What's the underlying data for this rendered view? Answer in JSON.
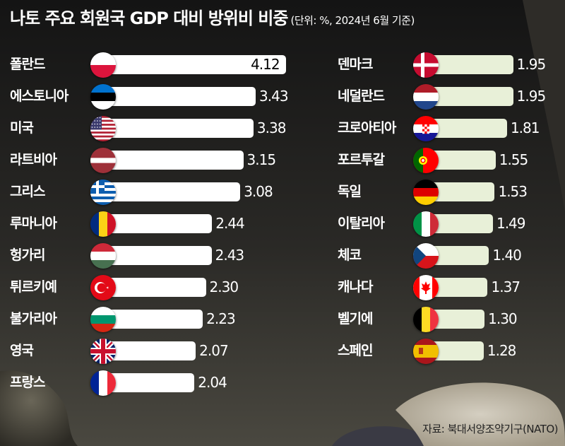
{
  "title": "나토 주요 회원국 GDP 대비 방위비 비중",
  "subtitle": "(단위: %, 2024년 6월 기준)",
  "source": "자료: 북대서양조약기구(NATO)",
  "colors": {
    "left_bar": "#ffffff",
    "right_bar": "#e8f0d8",
    "left_value_text": "#ffffff",
    "right_value_text": "#ffffff",
    "inside_value_text": "#000000"
  },
  "chart_data": {
    "type": "bar",
    "orientation": "horizontal",
    "title": "나토 주요 회원국 GDP 대비 방위비 비중",
    "subtitle": "(단위: %, 2024년 6월 기준)",
    "columns": [
      {
        "categories": [
          "폴란드",
          "에스토니아",
          "미국",
          "라트비아",
          "그리스",
          "루마니아",
          "헝가리",
          "튀르키예",
          "불가리아",
          "영국",
          "프랑스"
        ],
        "values": [
          4.12,
          3.43,
          3.38,
          3.15,
          3.08,
          2.44,
          2.43,
          2.3,
          2.23,
          2.07,
          2.04
        ],
        "labels": [
          "4.12",
          "3.43",
          "3.38",
          "3.15",
          "3.08",
          "2.44",
          "2.43",
          "2.30",
          "2.23",
          "2.07",
          "2.04"
        ],
        "flags": [
          "poland-flag-icon",
          "estonia-flag-icon",
          "usa-flag-icon",
          "latvia-flag-icon",
          "greece-flag-icon",
          "romania-flag-icon",
          "hungary-flag-icon",
          "turkey-flag-icon",
          "bulgaria-flag-icon",
          "uk-flag-icon",
          "france-flag-icon"
        ]
      },
      {
        "categories": [
          "덴마크",
          "네덜란드",
          "크로아티아",
          "포르투갈",
          "독일",
          "이탈리아",
          "체코",
          "캐나다",
          "벨기에",
          "스페인"
        ],
        "values": [
          1.95,
          1.95,
          1.81,
          1.55,
          1.53,
          1.49,
          1.4,
          1.37,
          1.3,
          1.28
        ],
        "labels": [
          "1.95",
          "1.95",
          "1.81",
          "1.55",
          "1.53",
          "1.49",
          "1.40",
          "1.37",
          "1.30",
          "1.28"
        ],
        "flags": [
          "denmark-flag-icon",
          "netherlands-flag-icon",
          "croatia-flag-icon",
          "portugal-flag-icon",
          "germany-flag-icon",
          "italy-flag-icon",
          "czech-flag-icon",
          "canada-flag-icon",
          "belgium-flag-icon",
          "spain-flag-icon"
        ]
      }
    ]
  }
}
